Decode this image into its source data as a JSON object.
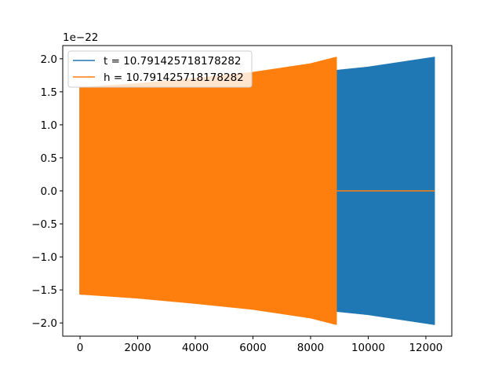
{
  "chart_data": {
    "type": "line",
    "title": "",
    "xlabel": "",
    "ylabel": "",
    "y_offset_label": "1e−22",
    "xlim": [
      -600,
      12900
    ],
    "ylim": [
      -2.2,
      2.2
    ],
    "x_ticks": [
      0,
      2000,
      4000,
      6000,
      8000,
      10000,
      12000
    ],
    "x_tick_labels": [
      "0",
      "2000",
      "4000",
      "6000",
      "8000",
      "10000",
      "12000"
    ],
    "y_ticks": [
      -2.0,
      -1.5,
      -1.0,
      -0.5,
      0.0,
      0.5,
      1.0,
      1.5,
      2.0
    ],
    "y_tick_labels": [
      "−2.0",
      "−1.5",
      "−1.0",
      "−0.5",
      "0.0",
      "0.5",
      "1.0",
      "1.5",
      "2.0"
    ],
    "grid": false,
    "legend_position": "upper-left",
    "series": [
      {
        "name": "t = 10.791425718178282",
        "color": "#1f77b4",
        "style": "oscillating envelope",
        "x_range": [
          0,
          12300
        ],
        "upper_envelope": {
          "x": [
            0,
            2000,
            4000,
            6000,
            8000,
            10000,
            12300
          ],
          "y": [
            1.57,
            1.61,
            1.66,
            1.72,
            1.79,
            1.88,
            2.03
          ]
        },
        "lower_envelope": {
          "x": [
            0,
            2000,
            4000,
            6000,
            8000,
            10000,
            12300
          ],
          "y": [
            -1.57,
            -1.61,
            -1.66,
            -1.72,
            -1.79,
            -1.88,
            -2.03
          ]
        }
      },
      {
        "name": "h = 10.791425718178282",
        "color": "#ff7f0e",
        "style": "oscillating envelope then flat at zero",
        "x_range": [
          0,
          12300
        ],
        "signal_end_x": 8900,
        "upper_envelope": {
          "x": [
            0,
            2000,
            4000,
            6000,
            8000,
            8900
          ],
          "y": [
            1.57,
            1.63,
            1.71,
            1.8,
            1.93,
            2.03
          ]
        },
        "lower_envelope": {
          "x": [
            0,
            2000,
            4000,
            6000,
            8000,
            8900
          ],
          "y": [
            -1.57,
            -1.63,
            -1.71,
            -1.8,
            -1.93,
            -2.03
          ]
        },
        "flat_value": 0.0
      }
    ]
  }
}
